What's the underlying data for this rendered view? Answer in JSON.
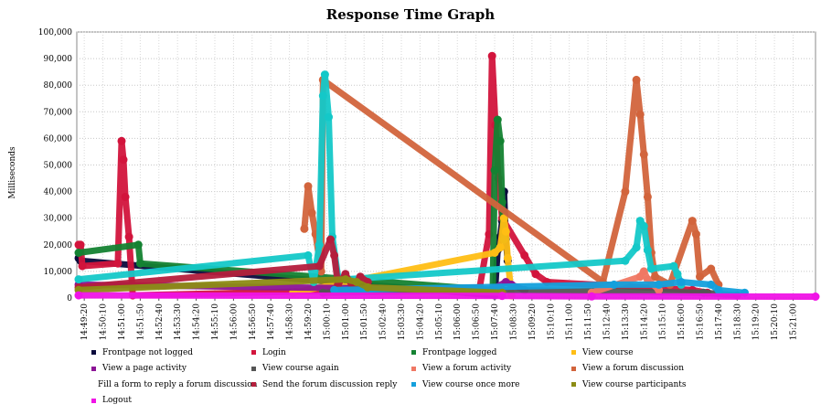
{
  "chart_data": {
    "type": "line",
    "title": "Response Time Graph",
    "ylabel": "Milliseconds",
    "xlabel": "",
    "ylim": [
      0,
      100000
    ],
    "yticks": [
      "0",
      "10,000",
      "20,000",
      "30,000",
      "40,000",
      "50,000",
      "60,000",
      "70,000",
      "80,000",
      "90,000",
      "100,000"
    ],
    "x_ticks": [
      "14:49:20",
      "14:50:10",
      "14:51:00",
      "14:51:50",
      "14:52:40",
      "14:53:30",
      "14:54:20",
      "14:55:10",
      "14:56:00",
      "14:56:50",
      "14:57:40",
      "14:58:30",
      "14:59:20",
      "15:00:10",
      "15:01:00",
      "15:01:50",
      "15:02:40",
      "15:03:30",
      "15:04:20",
      "15:05:10",
      "15:06:00",
      "15:06:50",
      "15:07:40",
      "15:08:30",
      "15:09:20",
      "15:10:10",
      "15:11:00",
      "15:11:50",
      "15:12:40",
      "15:13:30",
      "15:14:20",
      "15:15:10",
      "15:16:00",
      "15:16:50",
      "15:17:40",
      "15:18:30",
      "15:19:20",
      "15:20:10",
      "15:21:00"
    ],
    "x_range": [
      "14:49:00",
      "15:22:00"
    ],
    "grid": true,
    "legend_position": "bottom",
    "series": [
      {
        "name": "Frontpage not logged",
        "color": "#0a0a3c",
        "points": [
          [
            "14:49:05",
            15000
          ],
          [
            "14:49:10",
            14000
          ],
          [
            "15:07:40",
            1000
          ],
          [
            "15:07:48",
            18000
          ],
          [
            "15:07:55",
            23000
          ],
          [
            "15:08:00",
            29000
          ],
          [
            "15:08:05",
            40000
          ],
          [
            "15:08:10",
            22000
          ],
          [
            "15:08:15",
            14000
          ]
        ]
      },
      {
        "name": "Login",
        "color": "#d2143c",
        "points": [
          [
            "14:49:05",
            20000
          ],
          [
            "14:49:10",
            20000
          ],
          [
            "14:49:15",
            12000
          ],
          [
            "14:50:50",
            13000
          ],
          [
            "14:51:00",
            59000
          ],
          [
            "14:51:05",
            52000
          ],
          [
            "14:51:10",
            38000
          ],
          [
            "14:51:20",
            23000
          ],
          [
            "14:51:30",
            1000
          ],
          [
            "15:07:00",
            4000
          ],
          [
            "15:07:25",
            24000
          ],
          [
            "15:07:33",
            91000
          ],
          [
            "15:07:42",
            65000
          ],
          [
            "15:07:50",
            45000
          ],
          [
            "15:08:00",
            30000
          ],
          [
            "15:09:00",
            16000
          ],
          [
            "15:09:30",
            9000
          ],
          [
            "15:10:00",
            6000
          ],
          [
            "15:16:30",
            3000
          ],
          [
            "15:17:10",
            2000
          ]
        ]
      },
      {
        "name": "Frontpage logged",
        "color": "#148232",
        "points": [
          [
            "14:49:05",
            17000
          ],
          [
            "14:51:45",
            20000
          ],
          [
            "14:51:50",
            13000
          ],
          [
            "15:07:35",
            3000
          ],
          [
            "15:07:40",
            48000
          ],
          [
            "15:07:48",
            67000
          ],
          [
            "15:07:55",
            59000
          ],
          [
            "15:08:00",
            36000
          ],
          [
            "15:08:05",
            22000
          ]
        ]
      },
      {
        "name": "View course",
        "color": "#ffbe14",
        "points": [
          [
            "14:58:40",
            2000
          ],
          [
            "15:07:40",
            17000
          ],
          [
            "15:07:55",
            19000
          ],
          [
            "15:08:05",
            30000
          ],
          [
            "15:08:10",
            25000
          ],
          [
            "15:08:15",
            15000
          ],
          [
            "15:08:25",
            1000
          ]
        ]
      },
      {
        "name": "View a page activity",
        "color": "#8c1496",
        "points": [
          [
            "14:49:05",
            5000
          ],
          [
            "15:07:30",
            3000
          ],
          [
            "15:08:10",
            6000
          ],
          [
            "15:08:25",
            5000
          ],
          [
            "15:09:00",
            3000
          ]
        ]
      },
      {
        "name": "View course again",
        "color": "#555555",
        "points": [
          [
            "15:00:00",
            2000
          ],
          [
            "15:08:00",
            3000
          ],
          [
            "15:17:00",
            2000
          ],
          [
            "15:18:30",
            1000
          ]
        ]
      },
      {
        "name": "View a forum activity",
        "color": "#f07864",
        "points": [
          [
            "15:12:00",
            2000
          ],
          [
            "15:14:10",
            8000
          ],
          [
            "15:14:20",
            10000
          ],
          [
            "15:14:30",
            7000
          ],
          [
            "15:15:00",
            3000
          ]
        ]
      },
      {
        "name": "View a forum discussion",
        "color": "#d2643c",
        "points": [
          [
            "14:59:10",
            26000
          ],
          [
            "14:59:20",
            42000
          ],
          [
            "14:59:30",
            32000
          ],
          [
            "14:59:40",
            24000
          ],
          [
            "14:59:55",
            10000
          ],
          [
            "15:00:00",
            82000
          ],
          [
            "15:12:30",
            6000
          ],
          [
            "15:13:30",
            40000
          ],
          [
            "15:14:00",
            82000
          ],
          [
            "15:14:10",
            69000
          ],
          [
            "15:14:20",
            54000
          ],
          [
            "15:14:30",
            38000
          ],
          [
            "15:14:40",
            17000
          ],
          [
            "15:14:50",
            8000
          ],
          [
            "15:15:30",
            5000
          ],
          [
            "15:16:30",
            29000
          ],
          [
            "15:16:40",
            24000
          ],
          [
            "15:16:50",
            8000
          ],
          [
            "15:17:20",
            11000
          ],
          [
            "15:17:40",
            5000
          ]
        ]
      },
      {
        "name": "Fill a form to reply a forum discussion",
        "color": "#14c8c8",
        "points": [
          [
            "14:49:05",
            7000
          ],
          [
            "14:59:20",
            16000
          ],
          [
            "14:59:35",
            6000
          ],
          [
            "14:59:50",
            20000
          ],
          [
            "15:00:00",
            76000
          ],
          [
            "15:00:05",
            84000
          ],
          [
            "15:00:15",
            68000
          ],
          [
            "15:00:25",
            23000
          ],
          [
            "15:00:40",
            8000
          ],
          [
            "15:01:00",
            7000
          ],
          [
            "15:13:30",
            14000
          ],
          [
            "15:14:00",
            19000
          ],
          [
            "15:14:10",
            29000
          ],
          [
            "15:14:20",
            27000
          ],
          [
            "15:14:30",
            18000
          ],
          [
            "15:14:40",
            11000
          ],
          [
            "15:15:40",
            12000
          ],
          [
            "15:15:50",
            9000
          ],
          [
            "15:16:00",
            5000
          ]
        ]
      },
      {
        "name": "Send the forum discussion reply",
        "color": "#b41e3c",
        "points": [
          [
            "14:49:05",
            4000
          ],
          [
            "14:59:50",
            12000
          ],
          [
            "15:00:20",
            22000
          ],
          [
            "15:00:30",
            16000
          ],
          [
            "15:00:40",
            5000
          ],
          [
            "15:01:00",
            9000
          ],
          [
            "15:01:20",
            4000
          ],
          [
            "15:01:40",
            8000
          ],
          [
            "15:02:00",
            6000
          ]
        ]
      },
      {
        "name": "View course once more",
        "color": "#14a0dc",
        "points": [
          [
            "15:00:30",
            3000
          ],
          [
            "15:13:00",
            5000
          ],
          [
            "15:15:00",
            5000
          ],
          [
            "15:16:00",
            6000
          ],
          [
            "15:17:20",
            5000
          ],
          [
            "15:17:40",
            3000
          ],
          [
            "15:18:50",
            2000
          ]
        ]
      },
      {
        "name": "View course participants",
        "color": "#8c8c14",
        "points": [
          [
            "14:49:05",
            3000
          ],
          [
            "15:01:00",
            7000
          ],
          [
            "15:01:30",
            6000
          ],
          [
            "15:02:00",
            4000
          ],
          [
            "15:08:00",
            2000
          ]
        ]
      },
      {
        "name": "Logout",
        "color": "#f014e6",
        "points": [
          [
            "14:49:05",
            1000
          ],
          [
            "15:08:00",
            800
          ],
          [
            "15:12:00",
            600
          ],
          [
            "15:22:00",
            500
          ]
        ]
      }
    ]
  }
}
